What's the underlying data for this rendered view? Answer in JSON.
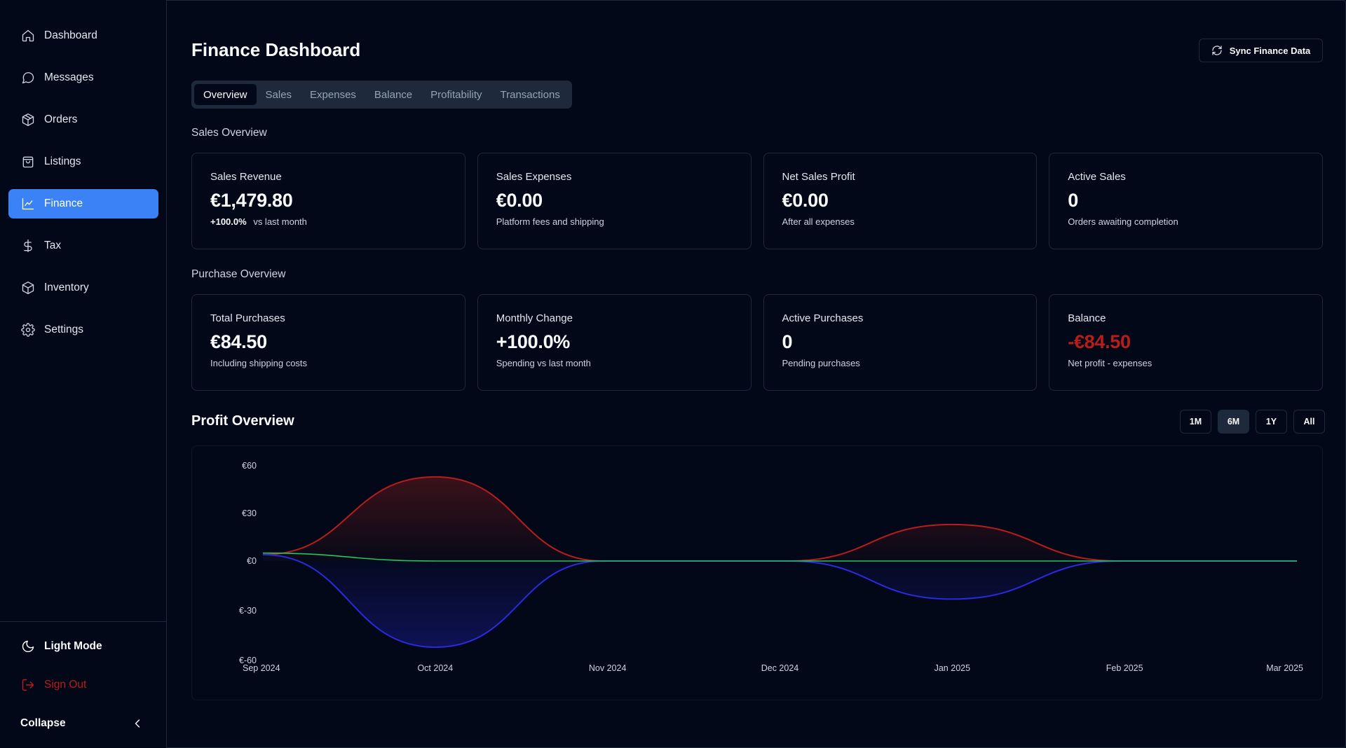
{
  "sidebar": {
    "items": [
      {
        "label": "Dashboard",
        "icon": "home-icon"
      },
      {
        "label": "Messages",
        "icon": "message-icon"
      },
      {
        "label": "Orders",
        "icon": "package-icon"
      },
      {
        "label": "Listings",
        "icon": "shopping-bag-icon"
      },
      {
        "label": "Finance",
        "icon": "line-chart-icon",
        "active": true
      },
      {
        "label": "Tax",
        "icon": "dollar-icon"
      },
      {
        "label": "Inventory",
        "icon": "box-icon"
      },
      {
        "label": "Settings",
        "icon": "gear-icon"
      }
    ],
    "light_mode": "Light Mode",
    "sign_out": "Sign Out",
    "collapse": "Collapse"
  },
  "header": {
    "title": "Finance Dashboard",
    "sync_button": "Sync Finance Data"
  },
  "tabs": [
    "Overview",
    "Sales",
    "Expenses",
    "Balance",
    "Profitability",
    "Transactions"
  ],
  "sales_overview": {
    "label": "Sales Overview",
    "cards": [
      {
        "title": "Sales Revenue",
        "value": "€1,479.80",
        "pct": "+100.0%",
        "sub": "vs last month"
      },
      {
        "title": "Sales Expenses",
        "value": "€0.00",
        "sub": "Platform fees and shipping"
      },
      {
        "title": "Net Sales Profit",
        "value": "€0.00",
        "sub": "After all expenses"
      },
      {
        "title": "Active Sales",
        "value": "0",
        "sub": "Orders awaiting completion"
      }
    ]
  },
  "purchase_overview": {
    "label": "Purchase Overview",
    "cards": [
      {
        "title": "Total Purchases",
        "value": "€84.50",
        "sub": "Including shipping costs"
      },
      {
        "title": "Monthly Change",
        "value": "+100.0%",
        "sub": "Spending vs last month"
      },
      {
        "title": "Active Purchases",
        "value": "0",
        "sub": "Pending purchases"
      },
      {
        "title": "Balance",
        "value": "-€84.50",
        "sub": "Net profit - expenses",
        "negative": true
      }
    ]
  },
  "profit_overview": {
    "title": "Profit Overview",
    "ranges": [
      "1M",
      "6M",
      "1Y",
      "All"
    ],
    "active_range": "6M"
  },
  "colors": {
    "accent": "#3b82f6",
    "negative": "#b91c1c",
    "series_red": "#b91c1c",
    "series_blue": "#1d1dd8",
    "series_green": "#22c55e"
  },
  "chart_data": {
    "type": "area",
    "x": [
      "Sep 2024",
      "Oct 2024",
      "Nov 2024",
      "Dec 2024",
      "Jan 2025",
      "Feb 2025",
      "Mar 2025"
    ],
    "y_ticks": [
      "€60",
      "€30",
      "€0",
      "€-30",
      "€-60"
    ],
    "y_tick_values": [
      60,
      30,
      0,
      -30,
      -60
    ],
    "ylim": [
      -60,
      60
    ],
    "series": [
      {
        "color": "#b91c1c",
        "points": [
          [
            0,
            4
          ],
          [
            1,
            53
          ],
          [
            1.97,
            0
          ],
          [
            3.05,
            0
          ],
          [
            4,
            23
          ],
          [
            4.97,
            0
          ],
          [
            6,
            0
          ]
        ]
      },
      {
        "color": "#2a2ae0",
        "points": [
          [
            0,
            4
          ],
          [
            1,
            -52
          ],
          [
            1.97,
            0
          ],
          [
            3.05,
            0
          ],
          [
            4,
            -23
          ],
          [
            4.97,
            0
          ],
          [
            6,
            0
          ]
        ]
      },
      {
        "color": "#22c55e",
        "points": [
          [
            0,
            5
          ],
          [
            1,
            0
          ],
          [
            1.97,
            0
          ],
          [
            3.05,
            0
          ],
          [
            4,
            0
          ],
          [
            4.97,
            0
          ],
          [
            6,
            0
          ]
        ]
      }
    ],
    "grid": false
  }
}
